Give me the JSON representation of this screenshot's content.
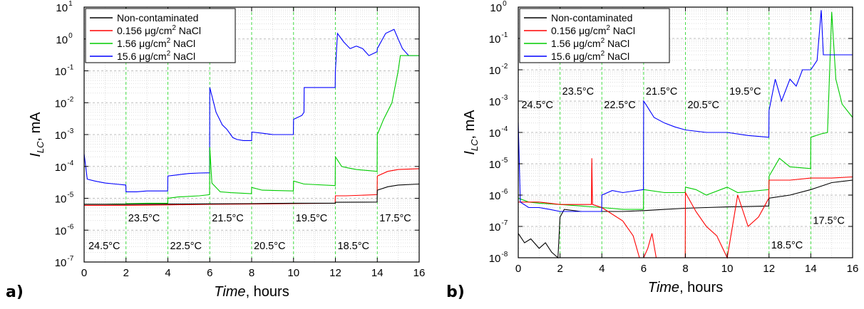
{
  "figure": {
    "panel_labels": [
      "a)",
      "b)"
    ]
  },
  "chart_data": [
    {
      "type": "line",
      "panel": "a)",
      "xlabel_italic": "Time",
      "xlabel_rest": ", hours",
      "ylabel_italic": "I",
      "ylabel_sub": "LC",
      "ylabel_rest": ", mA",
      "x_scale": "linear",
      "y_scale": "log",
      "xlim": [
        0,
        16
      ],
      "ylim_exp": [
        -7,
        1
      ],
      "x_ticks": [
        "0",
        "2",
        "4",
        "6",
        "8",
        "10",
        "12",
        "14",
        "16"
      ],
      "y_ticks_base": "10",
      "y_ticks_exp": [
        "-7",
        "-6",
        "-5",
        "-4",
        "-3",
        "-2",
        "-1",
        "0",
        "1"
      ],
      "grid": true,
      "legend_position": "top-left",
      "legend": [
        {
          "pre": "Non-contaminated",
          "mid": "",
          "sup": "",
          "post": ""
        },
        {
          "pre": "0.156 ",
          "mid": "μ",
          "sup": "2",
          "post": "g/cm",
          "suffix": " NaCl"
        },
        {
          "pre": "1.56 ",
          "mid": "μ",
          "sup": "2",
          "post": "g/cm",
          "suffix": " NaCl"
        },
        {
          "pre": "15.6 ",
          "mid": "μ",
          "sup": "2",
          "post": "g/cm",
          "suffix": " NaCl"
        }
      ],
      "annotations": [
        {
          "text": "24.5°C",
          "x": 0.1,
          "y": 2.5e-07
        },
        {
          "text": "23.5°C",
          "x": 2.0,
          "y": 1.9e-06
        },
        {
          "text": "22.5°C",
          "x": 4.0,
          "y": 2.5e-07
        },
        {
          "text": "21.5°C",
          "x": 6.0,
          "y": 1.9e-06
        },
        {
          "text": "20.5°C",
          "x": 8.0,
          "y": 2.5e-07
        },
        {
          "text": "19.5°C",
          "x": 10.0,
          "y": 1.9e-06
        },
        {
          "text": "18.5°C",
          "x": 12.0,
          "y": 2.5e-07
        },
        {
          "text": "17.5°C",
          "x": 14.0,
          "y": 1.9e-06
        }
      ],
      "colors": {
        "Non-contaminated": "#000000",
        "0.156": "#ff0000",
        "1.56": "#00cc00",
        "15.6": "#0000ff",
        "vlines": "#33dd33"
      },
      "series": [
        {
          "key": "blue",
          "color": "#0000ff",
          "x": [
            0,
            0.15,
            0.5,
            1.0,
            1.5,
            1.99,
            2.0,
            2.5,
            3.0,
            3.5,
            3.99,
            4.0,
            4.5,
            5.0,
            5.5,
            5.99,
            6.0,
            6.3,
            6.6,
            6.8,
            7.0,
            7.1,
            7.3,
            7.6,
            8.0,
            8.01,
            8.5,
            9.0,
            9.5,
            9.99,
            10.0,
            10.4,
            10.5,
            10.51,
            11.0,
            11.5,
            11.99,
            12.0,
            12.1,
            12.4,
            12.7,
            13.0,
            13.3,
            13.6,
            13.99,
            14.0,
            14.4,
            14.8,
            15.0,
            15.2,
            15.5,
            16.0
          ],
          "y": [
            0.00025,
            4e-05,
            3.5e-05,
            3e-05,
            2.8e-05,
            2.6e-05,
            1.6e-05,
            1.6e-05,
            1.7e-05,
            1.7e-05,
            1.7e-05,
            5e-05,
            5.5e-05,
            6e-05,
            6.2e-05,
            6.3e-05,
            0.03,
            0.005,
            0.002,
            0.0015,
            0.001,
            0.0008,
            0.0007,
            0.00065,
            0.00065,
            0.0012,
            0.0011,
            0.001,
            0.001,
            0.001,
            0.003,
            0.004,
            0.005,
            0.03,
            0.03,
            0.03,
            0.03,
            0.1,
            1.5,
            0.8,
            0.5,
            0.6,
            0.5,
            0.3,
            0.4,
            0.5,
            1.5,
            2.0,
            1.0,
            0.5,
            0.3,
            0.3
          ]
        },
        {
          "key": "green",
          "color": "#00cc00",
          "x": [
            0,
            0.5,
            1.0,
            1.5,
            1.99,
            2.0,
            3.0,
            3.99,
            4.0,
            4.5,
            5.5,
            5.99,
            6.0,
            6.1,
            6.5,
            7.0,
            7.99,
            8.0,
            8.5,
            9.99,
            10.0,
            10.5,
            11.99,
            12.0,
            12.3,
            12.6,
            13.0,
            13.99,
            14.0,
            14.3,
            14.7,
            15.0,
            15.1,
            15.5,
            16.0
          ],
          "y": [
            6.5e-06,
            6.5e-06,
            6.5e-06,
            6.6e-06,
            6.6e-06,
            6.8e-06,
            7e-06,
            7e-06,
            1e-05,
            1.1e-05,
            1.2e-05,
            1.3e-05,
            0.0004,
            3e-05,
            1.6e-05,
            1.5e-05,
            1.4e-05,
            2.2e-05,
            1.8e-05,
            1.7e-05,
            3.5e-05,
            2.8e-05,
            2.5e-05,
            0.0002,
            0.0001,
            9e-05,
            8e-05,
            7e-05,
            0.001,
            0.003,
            0.01,
            0.1,
            0.3,
            0.3,
            0.3
          ]
        },
        {
          "key": "red",
          "color": "#ff0000",
          "x": [
            0,
            2,
            4,
            6,
            8,
            10,
            11.99,
            12.0,
            12.5,
            13.99,
            14.0,
            14.5,
            15.0,
            16.0
          ],
          "y": [
            6e-06,
            6e-06,
            6.2e-06,
            6.5e-06,
            6.6e-06,
            6.8e-06,
            7e-06,
            1.2e-05,
            1.2e-05,
            1.3e-05,
            5e-05,
            7e-05,
            8e-05,
            8.5e-05
          ]
        },
        {
          "key": "black",
          "color": "#000000",
          "x": [
            0,
            2,
            4,
            6,
            8,
            10,
            11.99,
            12.0,
            13.99,
            14.0,
            14.5,
            15.0,
            16.0
          ],
          "y": [
            6.5e-06,
            6.5e-06,
            6.6e-06,
            6.7e-06,
            6.8e-06,
            7e-06,
            7e-06,
            7.5e-06,
            7.6e-06,
            1.8e-05,
            2.3e-05,
            2.6e-05,
            2.8e-05
          ]
        }
      ]
    },
    {
      "type": "line",
      "panel": "b)",
      "xlabel_italic": "Time",
      "xlabel_rest": ", hours",
      "ylabel_italic": "I",
      "ylabel_sub": "LC",
      "ylabel_rest": ", mA",
      "x_scale": "linear",
      "y_scale": "log",
      "xlim": [
        0,
        16
      ],
      "ylim_exp": [
        -8,
        0
      ],
      "x_ticks": [
        "0",
        "2",
        "4",
        "6",
        "8",
        "10",
        "12",
        "14",
        "16"
      ],
      "y_ticks_base": "10",
      "y_ticks_exp": [
        "-8",
        "-7",
        "-6",
        "-5",
        "-4",
        "-3",
        "-2",
        "-1",
        "0"
      ],
      "grid": true,
      "legend_position": "top-left",
      "legend": [
        {
          "pre": "Non-contaminated",
          "mid": "",
          "sup": "",
          "post": ""
        },
        {
          "pre": "0.156 ",
          "mid": "μ",
          "sup": "2",
          "post": "g/cm",
          "suffix": " NaCl"
        },
        {
          "pre": "1.56 ",
          "mid": "μ",
          "sup": "2",
          "post": "g/cm",
          "suffix": " NaCl"
        },
        {
          "pre": "15.6 ",
          "mid": "μ",
          "sup": "2",
          "post": "g/cm",
          "suffix": " NaCl"
        }
      ],
      "annotations": [
        {
          "text": "24.5°C",
          "x": 0.05,
          "y": 0.0006
        },
        {
          "text": "23.5°C",
          "x": 2.0,
          "y": 0.0016
        },
        {
          "text": "22.5°C",
          "x": 4.0,
          "y": 0.0006
        },
        {
          "text": "21.5°C",
          "x": 6.0,
          "y": 0.0016
        },
        {
          "text": "20.5°C",
          "x": 8.0,
          "y": 0.0006
        },
        {
          "text": "19.5°C",
          "x": 10.0,
          "y": 0.0016
        },
        {
          "text": "18.5°C",
          "x": 12.0,
          "y": 2e-08
        },
        {
          "text": "17.5°C",
          "x": 14.0,
          "y": 1.2e-07
        }
      ],
      "series": [
        {
          "key": "black",
          "color": "#000000",
          "x": [
            0,
            0.3,
            0.6,
            1.0,
            1.3,
            1.6,
            1.9,
            2.0,
            2.2,
            3.0,
            4.0,
            5.0,
            6.0,
            7.0,
            8.0,
            9.0,
            10.0,
            11.0,
            11.99,
            12.0,
            13.0,
            14.0,
            15.0,
            16.0
          ],
          "y": [
            6e-08,
            3e-08,
            4e-08,
            2e-08,
            3e-08,
            1.5e-08,
            1e-08,
            2e-07,
            3.5e-07,
            3e-07,
            3e-07,
            3e-07,
            3.2e-07,
            3.5e-07,
            3.8e-07,
            4e-07,
            4.2e-07,
            4.3e-07,
            4.5e-07,
            8e-07,
            1e-06,
            1.5e-06,
            2.5e-06,
            3e-06
          ]
        },
        {
          "key": "green",
          "color": "#00cc00",
          "x": [
            0,
            0.5,
            1.0,
            1.99,
            2.0,
            3.0,
            3.99,
            4.0,
            5.0,
            5.99,
            6.0,
            7.0,
            7.99,
            8.0,
            8.5,
            9.0,
            10.0,
            10.5,
            11.99,
            12.0,
            12.5,
            13.0,
            13.99,
            14.0,
            14.5,
            14.8,
            15.0,
            15.2,
            15.5,
            16.0
          ],
          "y": [
            8e-07,
            6e-07,
            5.5e-07,
            5e-07,
            5e-07,
            4.5e-07,
            4e-07,
            4e-07,
            3.5e-07,
            3.5e-07,
            1.5e-06,
            1.2e-06,
            1.2e-06,
            1.8e-06,
            1.5e-06,
            1e-06,
            1.8e-06,
            1.2e-06,
            1.5e-06,
            4e-06,
            1.5e-05,
            8e-06,
            7e-06,
            7e-05,
            9e-05,
            0.0001,
            0.7,
            0.005,
            0.0008,
            0.0003
          ]
        },
        {
          "key": "red",
          "color": "#ff0000",
          "x": [
            0,
            1.0,
            2.0,
            3.0,
            3.5,
            3.52,
            3.55,
            4.0,
            5.0,
            5.5,
            5.8,
            6.0,
            6.2,
            6.4,
            6.6,
            7.0,
            7.99,
            8.0,
            8.5,
            9.0,
            9.5,
            10.0,
            10.5,
            11.0,
            11.5,
            11.99,
            12.0,
            13.0,
            14.0,
            15.0,
            16.0
          ],
          "y": [
            6e-07,
            6e-07,
            5e-07,
            5e-07,
            5e-07,
            1.5e-05,
            5e-07,
            4e-07,
            1.5e-07,
            5e-08,
            1e-08,
            1e-08,
            2e-08,
            6e-08,
            1e-08,
            1e-08,
            1e-08,
            1.2e-06,
            3e-07,
            1e-07,
            5e-08,
            1e-08,
            1e-06,
            1e-07,
            2e-07,
            8e-07,
            3e-06,
            3e-06,
            3.5e-06,
            3.5e-06,
            3.8e-06
          ]
        },
        {
          "key": "blue",
          "color": "#0000ff",
          "x": [
            0,
            0.1,
            0.5,
            1.0,
            1.5,
            2.0,
            3.0,
            3.99,
            4.0,
            4.5,
            5.0,
            5.99,
            6.0,
            6.1,
            6.5,
            7.0,
            7.5,
            8.0,
            9.0,
            10.0,
            11.0,
            11.99,
            12.0,
            12.3,
            12.6,
            13.0,
            13.3,
            13.6,
            14.0,
            14.3,
            14.5,
            14.6,
            15.0,
            15.5,
            16.0
          ],
          "y": [
            0.0002,
            6e-07,
            4e-07,
            4e-07,
            3.5e-07,
            3e-07,
            3e-07,
            3e-07,
            1e-06,
            1.4e-06,
            1.2e-06,
            1.5e-06,
            0.001,
            0.0008,
            0.0003,
            0.0002,
            0.00015,
            0.00012,
            0.0001,
            0.0001,
            8e-05,
            7e-05,
            0.0005,
            0.005,
            0.001,
            0.005,
            0.003,
            0.01,
            0.01,
            0.02,
            0.8,
            0.03,
            0.03,
            0.03,
            0.03
          ]
        }
      ]
    }
  ]
}
